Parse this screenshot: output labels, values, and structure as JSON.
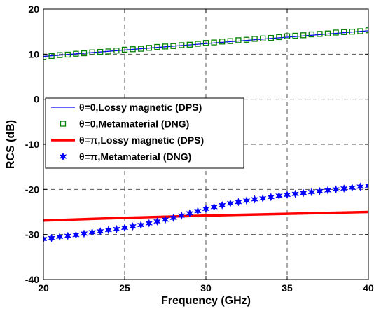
{
  "chart_data": {
    "type": "line",
    "xlabel": "Frequency (GHz)",
    "ylabel": "RCS (dB)",
    "xlim": [
      20,
      40
    ],
    "ylim": [
      -40,
      20
    ],
    "xticks": [
      "20",
      "25",
      "30",
      "35",
      "40"
    ],
    "yticks": [
      "-40",
      "-30",
      "-20",
      "-10",
      "0",
      "10",
      "20"
    ],
    "grid": true,
    "legend_position": "middle-left",
    "series": [
      {
        "name": "θ=0,Lossy magnetic (DPS)",
        "style": "line",
        "color": "#0000ff",
        "x": [
          20,
          40
        ],
        "y": [
          9.5,
          15.2
        ]
      },
      {
        "name": "θ=0,Metamaterial (DNG)",
        "style": "square-markers",
        "color": "#008000",
        "x": [
          20,
          20.5,
          21,
          21.5,
          22,
          22.5,
          23,
          23.5,
          24,
          24.5,
          25,
          25.5,
          26,
          26.5,
          27,
          27.5,
          28,
          28.5,
          29,
          29.5,
          30,
          30.5,
          31,
          31.5,
          32,
          32.5,
          33,
          33.5,
          34,
          34.5,
          35,
          35.5,
          36,
          36.5,
          37,
          37.5,
          38,
          38.5,
          39,
          39.5,
          40
        ],
        "y": [
          9.4,
          9.6,
          9.8,
          9.9,
          10.1,
          10.2,
          10.4,
          10.5,
          10.6,
          10.8,
          11.0,
          11.1,
          11.2,
          11.4,
          11.6,
          11.7,
          11.8,
          12.0,
          12.1,
          12.3,
          12.5,
          12.6,
          12.8,
          12.9,
          13.1,
          13.2,
          13.4,
          13.5,
          13.6,
          13.8,
          14.0,
          14.1,
          14.2,
          14.4,
          14.5,
          14.6,
          14.8,
          14.9,
          15.0,
          15.1,
          15.3
        ]
      },
      {
        "name": "θ=π,Lossy magnetic (DPS)",
        "style": "thick-line",
        "color": "#ff0000",
        "x": [
          20,
          25,
          30,
          35,
          40
        ],
        "y": [
          -26.9,
          -26.3,
          -25.8,
          -25.4,
          -25.0
        ]
      },
      {
        "name": "θ=π,Metamaterial (DNG)",
        "style": "star-markers",
        "color": "#0000ff",
        "x": [
          20,
          20.5,
          21,
          21.5,
          22,
          22.5,
          23,
          23.5,
          24,
          24.5,
          25,
          25.5,
          26,
          26.5,
          27,
          27.5,
          28,
          28.5,
          29,
          29.5,
          30,
          30.5,
          31,
          31.5,
          32,
          32.5,
          33,
          33.5,
          34,
          34.5,
          35,
          35.5,
          36,
          36.5,
          37,
          37.5,
          38,
          38.5,
          39,
          39.5,
          40
        ],
        "y": [
          -31.0,
          -30.8,
          -30.5,
          -30.3,
          -30.1,
          -29.8,
          -29.5,
          -29.3,
          -29.0,
          -28.8,
          -28.5,
          -28.2,
          -27.9,
          -27.5,
          -27.1,
          -26.7,
          -26.3,
          -25.8,
          -25.3,
          -24.8,
          -24.3,
          -23.9,
          -23.5,
          -23.1,
          -22.8,
          -22.5,
          -22.2,
          -22.0,
          -21.7,
          -21.4,
          -21.2,
          -21.0,
          -20.8,
          -20.6,
          -20.4,
          -20.2,
          -20.0,
          -19.8,
          -19.6,
          -19.4,
          -19.2
        ]
      }
    ]
  }
}
